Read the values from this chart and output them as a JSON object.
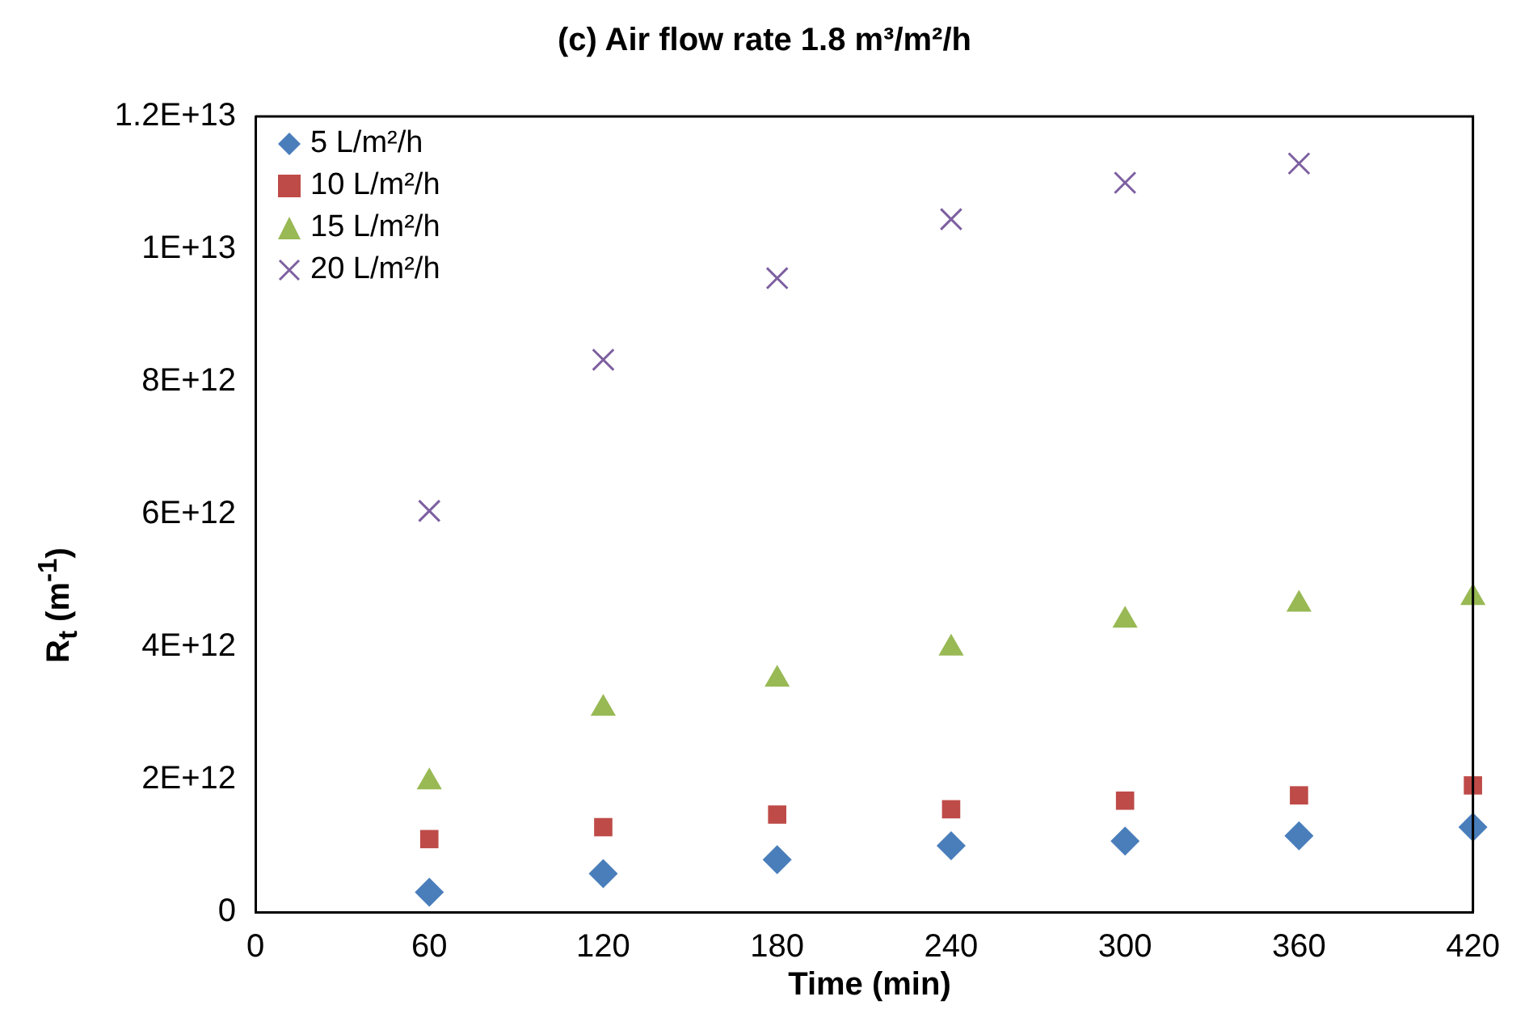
{
  "chart_data": {
    "type": "scatter",
    "title": "(c) Air flow rate 1.8 m³/m²/h",
    "xlabel": "Time (min)",
    "ylabel": "R$_{t}$ (m$^{-1}$)",
    "x": [
      60,
      120,
      180,
      240,
      300,
      360,
      420
    ],
    "series": [
      {
        "name": "5 L/m²/h",
        "color": "#4a7ebb",
        "marker": "diamond",
        "values": [
          300000000000.0,
          580000000000.0,
          790000000000.0,
          1000000000000.0,
          1070000000000.0,
          1150000000000.0,
          1280000000000.0
        ]
      },
      {
        "name": "10 L/m²/h",
        "color": "#be4b48",
        "marker": "square",
        "values": [
          1100000000000.0,
          1280000000000.0,
          1470000000000.0,
          1550000000000.0,
          1680000000000.0,
          1760000000000.0,
          1910000000000.0
        ]
      },
      {
        "name": "15 L/m²/h",
        "color": "#98b954",
        "marker": "triangle",
        "values": [
          1960000000000.0,
          3070000000000.0,
          3510000000000.0,
          3980000000000.0,
          4400000000000.0,
          4640000000000.0,
          4740000000000.0
        ]
      },
      {
        "name": "20 L/m²/h",
        "color": "#7d60a0",
        "marker": "cross",
        "values": [
          6050000000000.0,
          8330000000000.0,
          9560000000000.0,
          10450000000000.0,
          11000000000000.0,
          11290000000000.0,
          null
        ]
      }
    ],
    "xlim": [
      0,
      420
    ],
    "xticks": [
      0,
      60,
      120,
      180,
      240,
      300,
      360,
      420
    ],
    "ylim": [
      0,
      12000000000000.0
    ],
    "yticks": [
      0,
      {
        "value": 2000000000000.0,
        "label": "2E+12"
      },
      {
        "value": 4000000000000.0,
        "label": "4E+12"
      },
      {
        "value": 6000000000000.0,
        "label": "6E+12"
      },
      {
        "value": 8000000000000.0,
        "label": "8E+12"
      },
      {
        "value": 10000000000000.0,
        "label": "1E+13"
      },
      {
        "value": 12000000000000.0,
        "label": "1.2E+13"
      }
    ],
    "grid": false,
    "legend": "top left"
  }
}
